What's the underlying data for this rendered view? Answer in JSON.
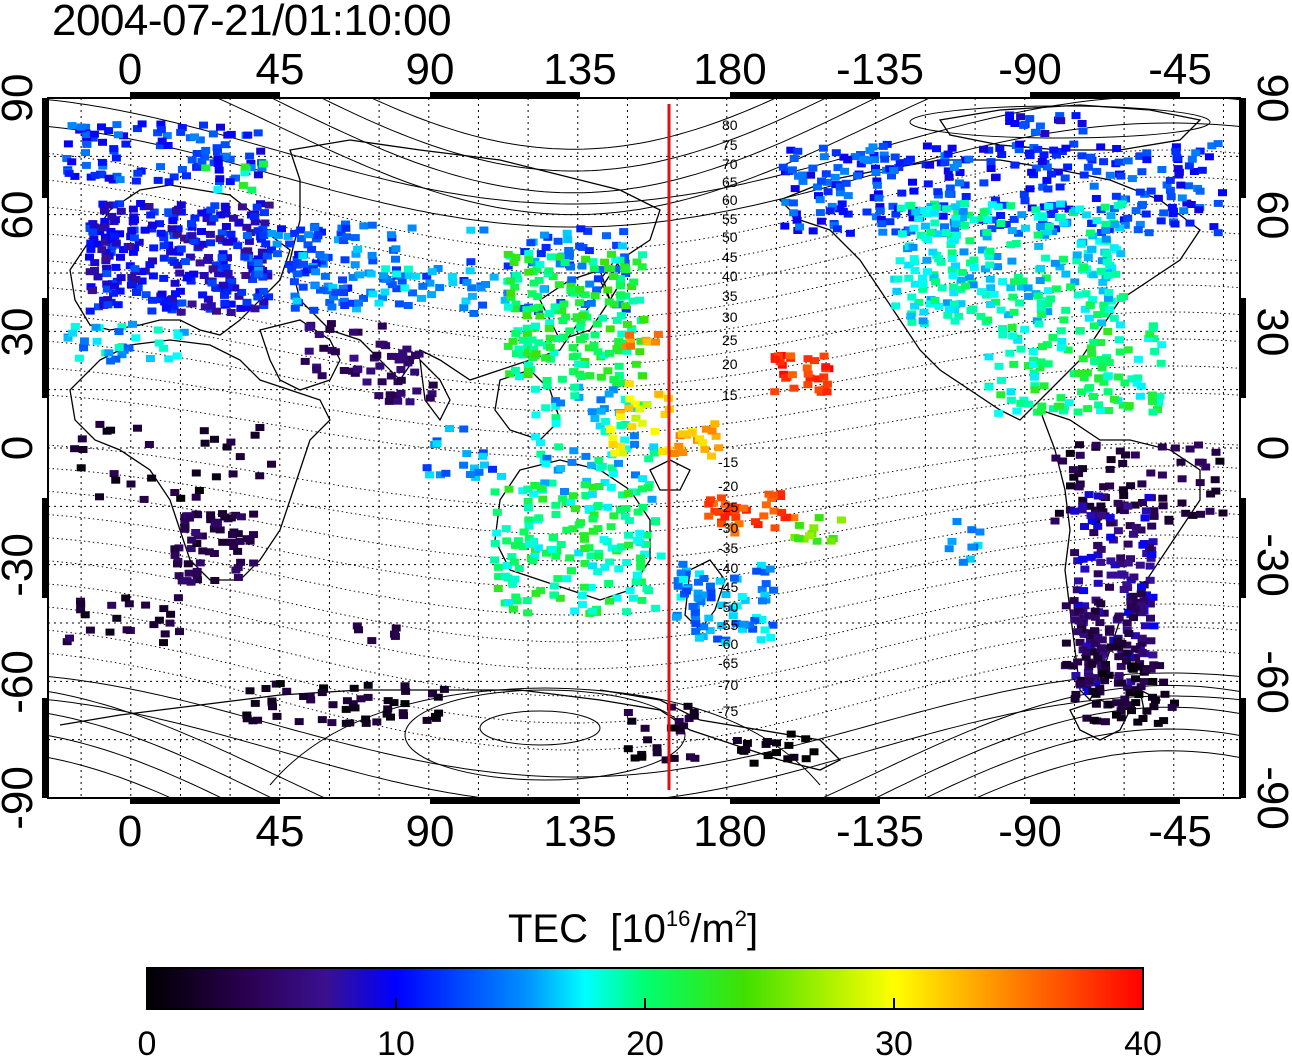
{
  "title": "2004-07-21/01:10:00",
  "map": {
    "top_lon_ticks": [
      "0",
      "45",
      "90",
      "135",
      "180",
      "-135",
      "-90",
      "-45"
    ],
    "bottom_lon_ticks": [
      "0",
      "45",
      "90",
      "135",
      "180",
      "-135",
      "-90",
      "-45"
    ],
    "left_lat_ticks": [
      "90",
      "60",
      "30",
      "0",
      "-30",
      "-60",
      "-90"
    ],
    "right_lat_ticks": [
      "90",
      "60",
      "30",
      "0",
      "-30",
      "-60",
      "-90"
    ],
    "contour_labels_north": [
      "80",
      "75",
      "70",
      "65",
      "60",
      "55",
      "50",
      "45",
      "40",
      "35",
      "30",
      "25",
      "20",
      "15"
    ],
    "contour_labels_south": [
      "-15",
      "-20",
      "-25",
      "-30",
      "-35",
      "-40",
      "-45",
      "-50",
      "-55",
      "-60",
      "-65",
      "-70",
      "-75"
    ],
    "meridian_marker_color": "#dd1111"
  },
  "colorbar": {
    "label": "TEC",
    "unit_base": "[10",
    "unit_exp1": "16",
    "unit_mid": "/m",
    "unit_exp2": "2",
    "unit_end": "]",
    "ticks": [
      "0",
      "10",
      "20",
      "30",
      "40"
    ],
    "min": 0,
    "max": 40,
    "colors": [
      "#000000",
      "#3a0070",
      "#2200cc",
      "#0000ff",
      "#00ffff",
      "#00ff00",
      "#ffff00",
      "#ff8000",
      "#ff0000"
    ]
  }
}
